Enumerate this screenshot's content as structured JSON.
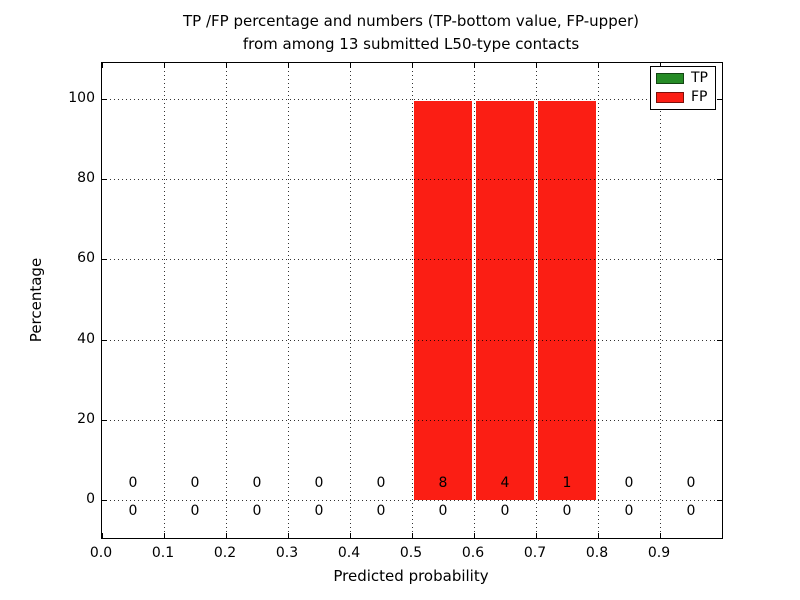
{
  "chart_data": {
    "type": "bar",
    "title": "TP /FP percentage and numbers (TP-bottom value, FP-upper)\nfrom among 13 submitted L50-type contacts",
    "xlabel": "Predicted probability",
    "ylabel": "Percentage",
    "xlim": [
      0.0,
      1.0
    ],
    "ylim": [
      -9.5,
      109
    ],
    "x_tick_values": [
      0.0,
      0.1,
      0.2,
      0.3,
      0.4,
      0.5,
      0.6,
      0.7,
      0.8,
      0.9
    ],
    "x_tick_labels": [
      "0.0",
      "0.1",
      "0.2",
      "0.3",
      "0.4",
      "0.5",
      "0.6",
      "0.7",
      "0.8",
      "0.9"
    ],
    "y_tick_values": [
      0,
      20,
      40,
      60,
      80,
      100
    ],
    "y_tick_labels": [
      "0",
      "20",
      "40",
      "60",
      "80",
      "100"
    ],
    "grid": true,
    "grid_style": "dotted",
    "legend_position": "upper right",
    "bin_width": 0.1,
    "bin_centers": [
      0.05,
      0.15,
      0.25,
      0.35,
      0.45,
      0.55,
      0.65,
      0.75,
      0.85,
      0.95
    ],
    "series": [
      {
        "name": "TP",
        "color": "#268b26",
        "bar_percent": [
          0,
          0,
          0,
          0,
          0,
          0,
          0,
          0,
          0,
          0
        ],
        "counts": [
          0,
          0,
          0,
          0,
          0,
          0,
          0,
          0,
          0,
          0
        ],
        "count_row": "bottom"
      },
      {
        "name": "FP",
        "color": "#fb1e14",
        "bar_percent": [
          0,
          0,
          0,
          0,
          0,
          99.5,
          99.5,
          99.5,
          0,
          0
        ],
        "counts": [
          0,
          0,
          0,
          0,
          0,
          8,
          4,
          1,
          0,
          0
        ],
        "count_row": "top"
      }
    ]
  }
}
